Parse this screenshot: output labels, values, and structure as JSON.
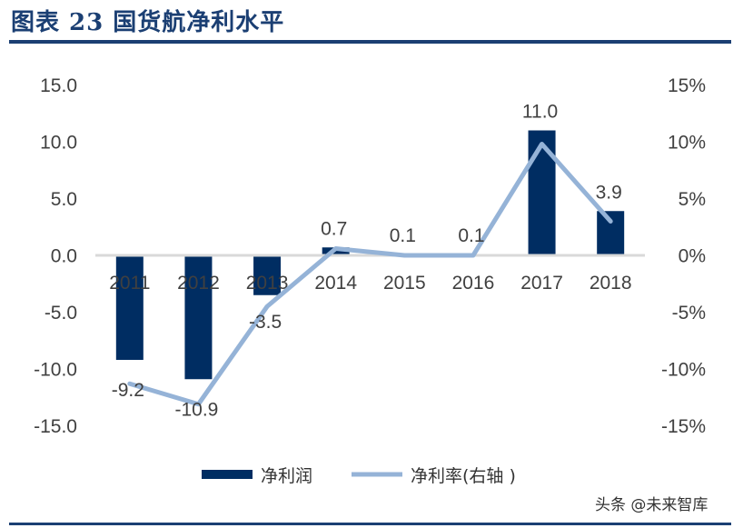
{
  "header": {
    "title": "图表 23    国货航净利水平"
  },
  "watermark": "头条 @未来智库",
  "chart_data": {
    "type": "bar+line",
    "title": "国货航净利水平",
    "categories": [
      "2011",
      "2012",
      "2013",
      "2014",
      "2015",
      "2016",
      "2017",
      "2018"
    ],
    "series": [
      {
        "name": "净利润",
        "type": "bar",
        "axis": "left",
        "color": "#002d62",
        "values": [
          -9.2,
          -10.9,
          -3.5,
          0.7,
          0.1,
          0.1,
          11.0,
          3.9
        ],
        "labels": [
          "-9.2",
          "-10.9",
          "-3.5",
          "0.7",
          "0.1",
          "0.1",
          "11.0",
          "3.9"
        ]
      },
      {
        "name": "净利率(右轴 )",
        "type": "line",
        "axis": "right",
        "color": "#95b3d7",
        "values": [
          -11.3,
          -13.1,
          -4.5,
          0.6,
          0.0,
          0.0,
          9.8,
          3.0
        ]
      }
    ],
    "left_axis": {
      "ylim": [
        -15,
        15
      ],
      "ticks": [
        "15.0",
        "10.0",
        "5.0",
        "0.0",
        "-5.0",
        "-10.0",
        "-15.0"
      ]
    },
    "right_axis": {
      "ylim": [
        -15,
        15
      ],
      "unit": "%",
      "ticks": [
        "15%",
        "10%",
        "5%",
        "0%",
        "-5%",
        "-10%",
        "-15%"
      ]
    },
    "grid": false,
    "legend": "bottom"
  }
}
